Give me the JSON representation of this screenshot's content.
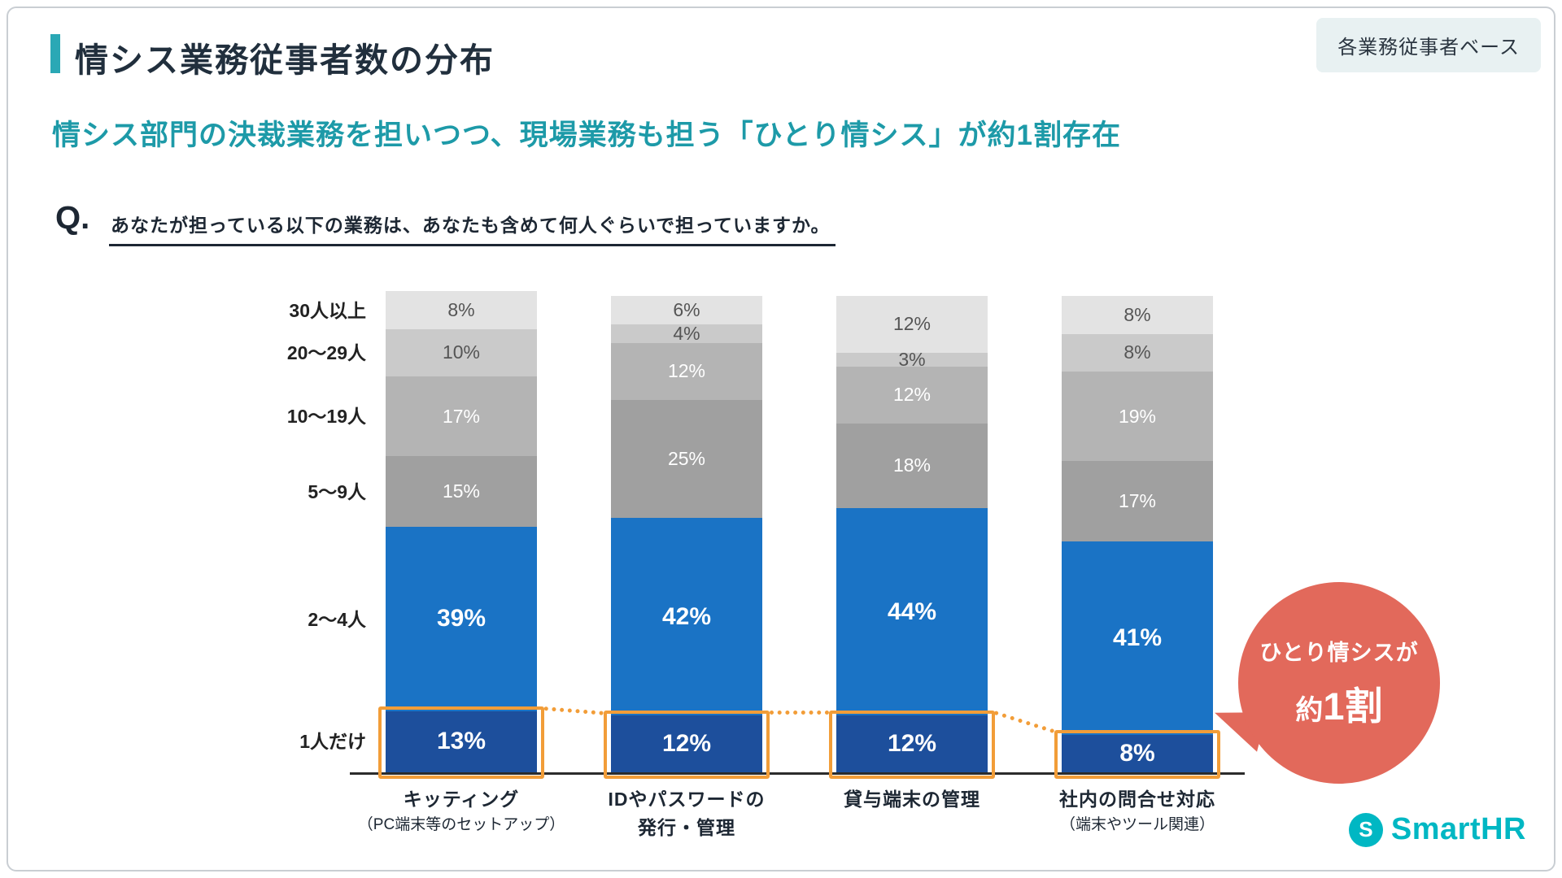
{
  "slide": {
    "title": "情シス業務従事者数の分布",
    "badge": "各業務従事者ベース",
    "subtitle": "情シス部門の決裁業務を担いつつ、現場業務も担う「ひとり情シス」が約1割存在",
    "question_prefix": "Q.",
    "question": "あなたが担っている以下の業務は、あなたも含めて何人ぐらいで担っていますか。",
    "colors": {
      "accent_teal": "#2aa8b5",
      "subtitle_teal": "#1d9aa8",
      "badge_bg": "#e8f1f2",
      "text_dark": "#212f3d",
      "logo_teal": "#00b7c3"
    },
    "logo": {
      "mark": "S",
      "text": "SmartHR"
    }
  },
  "chart_data": {
    "type": "stacked-bar",
    "title": "情シス業務従事者数の分布",
    "unit": "%",
    "ylim": [
      0,
      100
    ],
    "legend_position": "left-axis",
    "grid": false,
    "group_labels": [
      "1人だけ",
      "2〜4人",
      "5〜9人",
      "10〜19人",
      "20〜29人",
      "30人以上"
    ],
    "segment_colors": [
      "#1d4f9c",
      "#1a73c5",
      "#a0a0a0",
      "#b4b4b4",
      "#cacaca",
      "#e3e3e3"
    ],
    "segment_text_colors": [
      "#ffffff",
      "#ffffff",
      "#ffffff",
      "#ffffff",
      "#555555",
      "#555555"
    ],
    "categories": [
      {
        "label": "キッティング",
        "sublabel": "（PC端末等のセットアップ）",
        "values": [
          13,
          39,
          15,
          17,
          10,
          8
        ]
      },
      {
        "label": "IDやパスワードの",
        "label2": "発行・管理",
        "values": [
          12,
          42,
          25,
          12,
          4,
          6
        ]
      },
      {
        "label": "貸与端末の管理",
        "values": [
          12,
          44,
          18,
          12,
          3,
          12
        ]
      },
      {
        "label": "社内の問合せ対応",
        "sublabel": "（端末やツール関連）",
        "values": [
          8,
          41,
          17,
          19,
          8,
          8
        ]
      }
    ],
    "highlight": {
      "segment_index": 0,
      "color": "#f29d38",
      "note": "ひとり情シスが約1割"
    }
  },
  "bubble": {
    "line1": "ひとり情シスが",
    "line2a": "約",
    "line2b": "1割",
    "color": "#e2695b"
  }
}
